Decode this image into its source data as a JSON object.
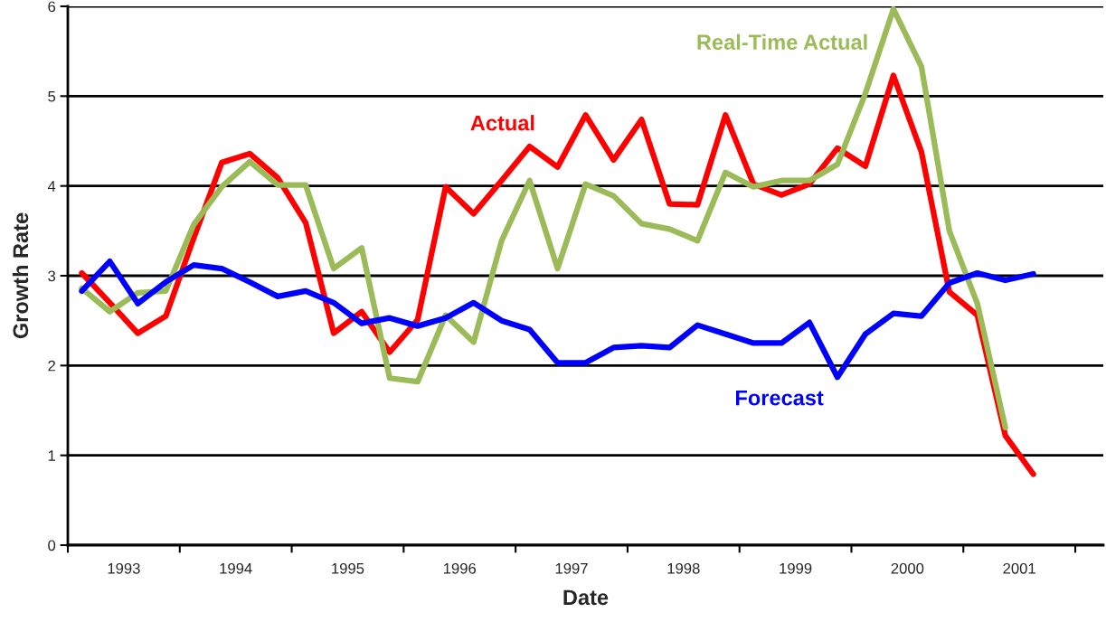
{
  "chart_data": {
    "type": "line",
    "xlabel": "Date",
    "ylabel": "Growth Rate",
    "x": [
      1993.125,
      1993.375,
      1993.625,
      1993.875,
      1994.125,
      1994.375,
      1994.625,
      1994.875,
      1995.125,
      1995.375,
      1995.625,
      1995.875,
      1996.125,
      1996.375,
      1996.625,
      1996.875,
      1997.125,
      1997.375,
      1997.625,
      1997.875,
      1998.125,
      1998.375,
      1998.625,
      1998.875,
      1999.125,
      1999.375,
      1999.625,
      1999.875,
      2000.125,
      2000.375,
      2000.625,
      2000.875,
      2001.125,
      2001.375,
      2001.625
    ],
    "series": [
      {
        "name": "Actual",
        "color": "#ff0000",
        "values": [
          3.03,
          2.7,
          2.36,
          2.55,
          3.42,
          4.26,
          4.36,
          4.09,
          3.59,
          2.36,
          2.6,
          2.15,
          2.51,
          3.99,
          3.69,
          4.06,
          4.44,
          4.21,
          4.79,
          4.29,
          4.74,
          3.8,
          3.79,
          4.79,
          4.02,
          3.9,
          4.02,
          4.42,
          4.22,
          5.23,
          4.38,
          2.82,
          2.56,
          1.22,
          0.79
        ]
      },
      {
        "name": "Real-Time Actual",
        "color": "#9bbb59",
        "values": [
          2.86,
          2.6,
          2.81,
          2.83,
          3.57,
          3.99,
          4.27,
          4.01,
          4.01,
          3.08,
          3.31,
          1.86,
          1.82,
          2.56,
          2.26,
          3.39,
          4.06,
          3.08,
          4.02,
          3.89,
          3.58,
          3.52,
          3.39,
          4.15,
          3.99,
          4.06,
          4.06,
          4.24,
          5.03,
          5.97,
          5.33,
          3.5,
          2.69,
          1.31,
          null
        ]
      },
      {
        "name": "Forecast",
        "color": "#0000ff",
        "values": [
          2.83,
          3.16,
          2.69,
          2.93,
          3.12,
          3.08,
          2.93,
          2.77,
          2.83,
          2.7,
          2.47,
          2.53,
          2.44,
          2.53,
          2.7,
          2.5,
          2.4,
          2.03,
          2.03,
          2.2,
          2.22,
          2.2,
          2.45,
          2.35,
          2.25,
          2.25,
          2.48,
          1.87,
          2.35,
          2.58,
          2.55,
          2.92,
          3.03,
          2.95,
          3.02
        ]
      }
    ],
    "xlim": [
      1993,
      2002.25
    ],
    "xticks": [
      {
        "value": 1993,
        "label": null
      },
      {
        "value": 1994,
        "label": null
      },
      {
        "value": 1995,
        "label": null
      },
      {
        "value": 1996,
        "label": null
      },
      {
        "value": 1997,
        "label": null
      },
      {
        "value": 1998,
        "label": null
      },
      {
        "value": 1999,
        "label": null
      },
      {
        "value": 2000,
        "label": null
      },
      {
        "value": 2001,
        "label": null
      },
      {
        "value": 2002,
        "label": null
      },
      {
        "value": 1993.5,
        "label": "1993"
      },
      {
        "value": 1994.5,
        "label": "1994"
      },
      {
        "value": 1995.5,
        "label": "1995"
      },
      {
        "value": 1996.5,
        "label": "1996"
      },
      {
        "value": 1997.5,
        "label": "1997"
      },
      {
        "value": 1998.5,
        "label": "1998"
      },
      {
        "value": 1999.5,
        "label": "1999"
      },
      {
        "value": 2000.5,
        "label": "2000"
      },
      {
        "value": 2001.5,
        "label": "2001"
      }
    ],
    "ylim": [
      0,
      6
    ],
    "yticks": [
      0,
      1,
      2,
      3,
      4,
      5,
      6
    ],
    "grid": "y",
    "legend": false,
    "marker": "none",
    "line_style": "solid"
  }
}
